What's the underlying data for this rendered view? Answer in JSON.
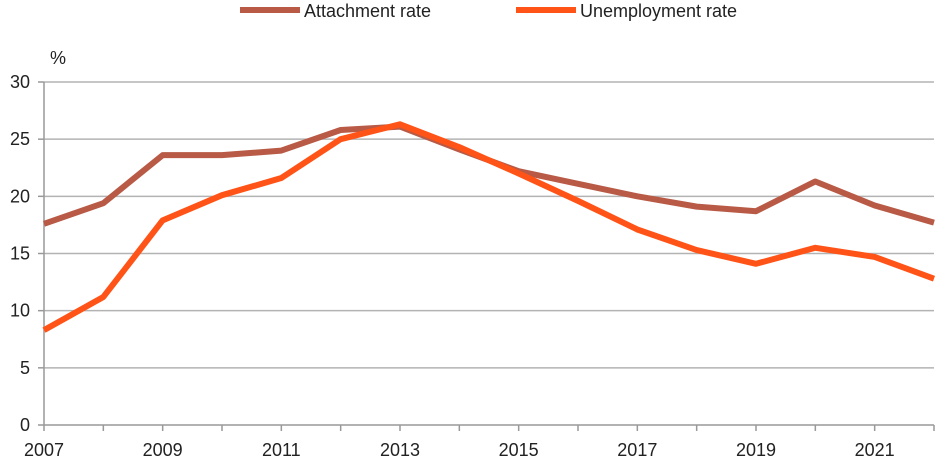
{
  "chart_data": {
    "type": "line",
    "title": "",
    "xlabel": "",
    "ylabel": "%",
    "ylim": [
      0,
      30
    ],
    "xlim": [
      2007,
      2022
    ],
    "yticks": [
      0,
      5,
      10,
      15,
      20,
      25,
      30
    ],
    "xticks": [
      2007,
      2009,
      2011,
      2013,
      2015,
      2017,
      2019,
      2021
    ],
    "grid": true,
    "legend_position": "top",
    "x": [
      2007,
      2008,
      2009,
      2010,
      2011,
      2012,
      2013,
      2014,
      2015,
      2016,
      2017,
      2018,
      2019,
      2020,
      2021,
      2022
    ],
    "series": [
      {
        "name": "Attachment rate",
        "color": "#b85a45",
        "values": [
          17.6,
          19.4,
          23.6,
          23.6,
          24.0,
          25.8,
          26.1,
          24.1,
          22.2,
          21.1,
          20.0,
          19.1,
          18.7,
          21.3,
          19.2,
          17.7
        ]
      },
      {
        "name": "Unemployment rate",
        "color": "#ff5317",
        "values": [
          8.3,
          11.2,
          17.9,
          20.1,
          21.6,
          25.0,
          26.3,
          24.3,
          22.0,
          19.6,
          17.1,
          15.3,
          14.1,
          15.5,
          14.7,
          12.8
        ]
      }
    ]
  }
}
